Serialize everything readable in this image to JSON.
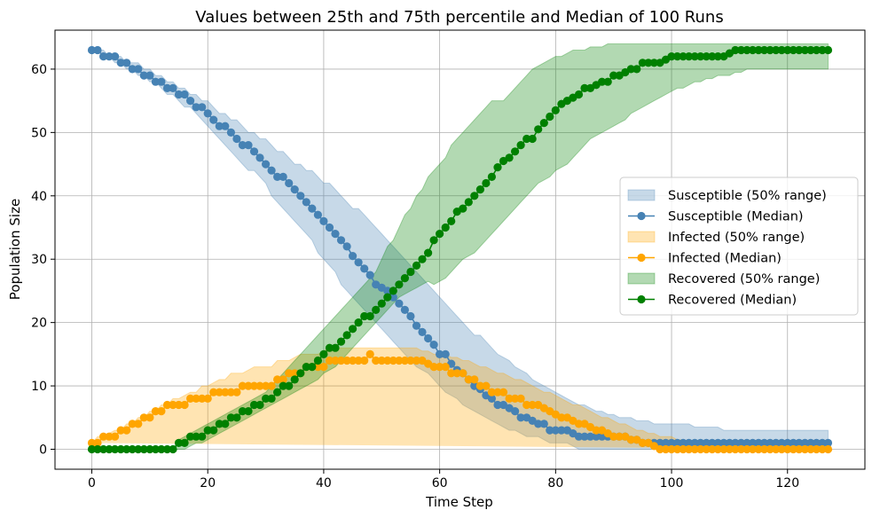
{
  "chart_data": {
    "type": "line",
    "title": "Values between 25th and 75th percentile and Median of 100 Runs",
    "xlabel": "Time Step",
    "ylabel": "Population Size",
    "xlim": [
      -6.35,
      133.35
    ],
    "ylim": [
      -3.15,
      66.15
    ],
    "x_ticks": [
      0,
      20,
      40,
      60,
      80,
      100,
      120
    ],
    "y_ticks": [
      0,
      10,
      20,
      30,
      40,
      50,
      60
    ],
    "grid": true,
    "legend_position": "center-right",
    "legend": [
      {
        "label": "Susceptible (50% range)",
        "kind": "band",
        "color": "#4682b4"
      },
      {
        "label": "Susceptible (Median)",
        "kind": "line",
        "color": "#4682b4"
      },
      {
        "label": "Infected (50% range)",
        "kind": "band",
        "color": "#ffa500"
      },
      {
        "label": "Infected (Median)",
        "kind": "line",
        "color": "#ffa500"
      },
      {
        "label": "Recovered (50% range)",
        "kind": "band",
        "color": "#008000"
      },
      {
        "label": "Recovered (Median)",
        "kind": "line",
        "color": "#008000"
      }
    ],
    "x": [
      0,
      1,
      2,
      3,
      4,
      5,
      6,
      7,
      8,
      9,
      10,
      11,
      12,
      13,
      14,
      15,
      16,
      17,
      18,
      19,
      20,
      21,
      22,
      23,
      24,
      25,
      26,
      27,
      28,
      29,
      30,
      31,
      32,
      33,
      34,
      35,
      36,
      37,
      38,
      39,
      40,
      41,
      42,
      43,
      44,
      45,
      46,
      47,
      48,
      49,
      50,
      51,
      52,
      53,
      54,
      55,
      56,
      57,
      58,
      59,
      60,
      61,
      62,
      63,
      64,
      65,
      66,
      67,
      68,
      69,
      70,
      71,
      72,
      73,
      74,
      75,
      76,
      77,
      78,
      79,
      80,
      81,
      82,
      83,
      84,
      85,
      86,
      87,
      88,
      89,
      90,
      91,
      92,
      93,
      94,
      95,
      96,
      97,
      98,
      99,
      100,
      101,
      102,
      103,
      104,
      105,
      106,
      107,
      108,
      109,
      110,
      111,
      112,
      113,
      114,
      115,
      116,
      117,
      118,
      119,
      120,
      121,
      122,
      123,
      124,
      125,
      126,
      127
    ],
    "series": [
      {
        "name": "Susceptible",
        "color": "#4682b4",
        "median": [
          63,
          63,
          62,
          62,
          62,
          61,
          61,
          60,
          60,
          59,
          59,
          58,
          58,
          57,
          57,
          56,
          56,
          55,
          54,
          54,
          53,
          52,
          51,
          51,
          50,
          49,
          48,
          48,
          47,
          46,
          45,
          44,
          43,
          43,
          42,
          41,
          40,
          39,
          38,
          37,
          36,
          35,
          34,
          33,
          32,
          30.5,
          29.5,
          28.5,
          27.5,
          26,
          25.5,
          25,
          24,
          23,
          22,
          21,
          19.5,
          18.5,
          17.5,
          16.5,
          15,
          15,
          13.5,
          12.5,
          12,
          11,
          10,
          9.5,
          8.5,
          8,
          7,
          7,
          6.5,
          6,
          5,
          5,
          4.5,
          4,
          4,
          3,
          3,
          3,
          3,
          2.5,
          2,
          2,
          2,
          2,
          2,
          2,
          2,
          2,
          2,
          1.5,
          1.5,
          1,
          1,
          1,
          1,
          1,
          1,
          1,
          1,
          1,
          1,
          1,
          1,
          1,
          1,
          1,
          1,
          1,
          1,
          1,
          1,
          1,
          1,
          1,
          1,
          1,
          1,
          1,
          1,
          1,
          1,
          1,
          1,
          1
        ],
        "q25": [
          63,
          63,
          62,
          62,
          61,
          61,
          60,
          60,
          59,
          59,
          58,
          58,
          57,
          56,
          56,
          55,
          54,
          54,
          53,
          52,
          51,
          50,
          49,
          48,
          47,
          46,
          45,
          44,
          44,
          43,
          42,
          40,
          39,
          38,
          37,
          36,
          35,
          34,
          33,
          31,
          30,
          29,
          28,
          26,
          25,
          24,
          23,
          22,
          21,
          20,
          19,
          18,
          17,
          16,
          15,
          14,
          13,
          12.5,
          12,
          11,
          10,
          9,
          8.5,
          8,
          7,
          6.5,
          6,
          5.5,
          5,
          4.5,
          4,
          3.5,
          3,
          3,
          2.5,
          2,
          2,
          2,
          1.5,
          1,
          1,
          1,
          1,
          0.5,
          0,
          0,
          0,
          0,
          0,
          0,
          0,
          0,
          0,
          0,
          0,
          0,
          0,
          0,
          0,
          0,
          0,
          0,
          0,
          0,
          0,
          0,
          0,
          0,
          0,
          0,
          0,
          0,
          0,
          0,
          0,
          0,
          0,
          0,
          0,
          0,
          0,
          0,
          0,
          0,
          0,
          0,
          0,
          0
        ],
        "q75": [
          63,
          63,
          63,
          62,
          62,
          62,
          61,
          61,
          61,
          60,
          60,
          59,
          59,
          58,
          58,
          57,
          57,
          56,
          56,
          55,
          55,
          54,
          53,
          53,
          52,
          52,
          51,
          50,
          50,
          49,
          49,
          48,
          47,
          47,
          46,
          45,
          45,
          44,
          44,
          43,
          42,
          42,
          41,
          40,
          39,
          38,
          38,
          37,
          36,
          35,
          34,
          33,
          32,
          31,
          30,
          29,
          28,
          27,
          26,
          25,
          24,
          23,
          22,
          21,
          20,
          19,
          18,
          18,
          17,
          16,
          15,
          14.5,
          14,
          13,
          12.5,
          12,
          11,
          10.5,
          10,
          9.5,
          9,
          8.5,
          8,
          7.5,
          7,
          7,
          6.5,
          6,
          6,
          5.5,
          5.5,
          5,
          5,
          5,
          4.5,
          4.5,
          4.5,
          4,
          4,
          4,
          4,
          4,
          4,
          4,
          3.5,
          3.5,
          3.5,
          3.5,
          3.5,
          3,
          3,
          3,
          3,
          3,
          3,
          3,
          3,
          3,
          3,
          3,
          3,
          3,
          3,
          3,
          3,
          3,
          3,
          3
        ]
      },
      {
        "name": "Infected",
        "color": "#ffa500",
        "median": [
          1,
          1,
          2,
          2,
          2,
          3,
          3,
          4,
          4,
          5,
          5,
          6,
          6,
          7,
          7,
          7,
          7,
          8,
          8,
          8,
          8,
          9,
          9,
          9,
          9,
          9,
          10,
          10,
          10,
          10,
          10,
          10,
          11,
          11,
          12,
          12,
          12,
          13,
          13,
          13,
          13,
          14,
          14,
          14,
          14,
          14,
          14,
          14,
          15,
          14,
          14,
          14,
          14,
          14,
          14,
          14,
          14,
          14,
          13.5,
          13,
          13,
          13,
          12,
          12,
          12,
          11,
          11,
          10,
          10,
          9,
          9,
          9,
          8,
          8,
          8,
          7,
          7,
          7,
          6.5,
          6,
          5.5,
          5,
          5,
          4.5,
          4,
          4,
          3.5,
          3,
          3,
          2.5,
          2,
          2,
          2,
          1.5,
          1.5,
          1,
          1,
          0.5,
          0,
          0,
          0,
          0,
          0,
          0,
          0,
          0,
          0,
          0,
          0,
          0,
          0,
          0,
          0,
          0,
          0,
          0,
          0,
          0,
          0,
          0,
          0,
          0,
          0,
          0,
          0,
          0,
          0,
          0
        ],
        "q25": [
          1,
          1,
          1,
          1.5,
          2,
          2,
          2.5,
          3,
          3,
          3.5,
          4,
          4.5,
          5,
          5,
          5.5,
          6,
          6,
          6,
          6.5,
          7,
          7,
          7,
          7.5,
          7.5,
          7.5,
          8,
          8,
          8,
          8.5,
          8.5,
          9,
          9,
          9,
          9.5,
          10,
          10,
          10,
          10.5,
          11,
          11,
          11,
          11,
          11,
          11,
          11,
          11,
          11,
          11,
          11,
          11,
          11,
          11,
          11,
          11,
          11,
          10.5,
          10.5,
          10,
          10,
          10,
          9.5,
          9.5,
          9,
          9,
          8.5,
          8,
          8,
          7.5,
          7,
          7,
          6.5,
          6,
          6,
          5.5,
          5,
          5,
          4.5,
          4,
          4,
          3.5,
          3,
          2.5,
          2,
          2,
          1.5,
          1,
          1,
          1,
          0.5,
          0.5,
          0,
          0,
          0,
          0,
          0,
          0,
          0,
          0,
          0,
          0,
          0,
          0,
          0,
          0,
          0,
          0,
          0,
          0,
          0,
          0,
          0,
          0,
          0,
          0,
          0,
          0,
          0,
          0,
          0,
          0,
          0,
          0,
          0,
          0,
          0,
          0,
          0,
          0
        ],
        "q75": [
          1,
          2,
          2,
          2.5,
          3,
          3,
          4,
          4,
          5,
          5,
          6,
          6,
          7,
          7,
          8,
          8,
          8.5,
          9,
          9,
          10,
          10,
          10.5,
          11,
          11,
          12,
          12,
          12,
          12.5,
          13,
          13,
          13,
          13,
          14,
          14,
          14,
          14.5,
          15,
          15,
          15,
          15,
          15.5,
          16,
          16,
          16,
          16,
          16,
          16,
          16,
          16,
          16,
          16,
          16,
          16,
          16,
          16,
          16,
          16,
          15.5,
          15.5,
          15,
          15,
          15,
          14.5,
          14.5,
          14,
          14,
          13.5,
          13,
          13,
          12.5,
          12,
          12,
          11.5,
          11,
          11,
          10.5,
          10,
          9.5,
          9,
          9,
          8.5,
          8,
          7.5,
          7,
          7,
          6.5,
          6,
          5.5,
          5,
          5,
          4.5,
          4,
          4,
          3.5,
          3,
          3,
          2.5,
          2.5,
          2,
          2,
          2,
          1.5,
          1.5,
          1,
          1,
          1,
          0.5,
          0.5,
          0,
          0,
          0,
          0,
          0,
          0,
          0,
          0,
          0,
          0,
          0,
          0,
          0,
          0,
          0,
          0,
          0,
          0
        ]
      },
      {
        "name": "Recovered",
        "color": "#008000",
        "median": [
          0,
          0,
          0,
          0,
          0,
          0,
          0,
          0,
          0,
          0,
          0,
          0,
          0,
          0,
          0,
          1,
          1,
          2,
          2,
          2,
          3,
          3,
          4,
          4,
          5,
          5,
          6,
          6,
          7,
          7,
          8,
          8,
          9,
          10,
          10,
          11,
          12,
          13,
          13,
          14,
          15,
          16,
          16,
          17,
          18,
          19,
          20,
          21,
          21,
          22,
          23,
          24,
          25,
          26,
          27,
          28,
          29,
          30,
          31,
          33,
          34,
          35,
          36,
          37.5,
          38,
          39,
          40,
          41,
          42,
          43,
          44.5,
          45.5,
          46,
          47,
          48,
          49,
          49,
          50.5,
          51.5,
          52.5,
          53.5,
          54.5,
          55,
          55.5,
          56,
          57,
          57,
          57.5,
          58,
          58,
          59,
          59,
          59.5,
          60,
          60,
          61,
          61,
          61,
          61,
          61.5,
          62,
          62,
          62,
          62,
          62,
          62,
          62,
          62,
          62,
          62,
          62.5,
          63,
          63,
          63,
          63,
          63,
          63,
          63,
          63,
          63,
          63,
          63,
          63,
          63,
          63,
          63,
          63,
          63
        ],
        "q25": [
          0,
          0,
          0,
          0,
          0,
          0,
          0,
          0,
          0,
          0,
          0,
          0,
          0,
          0,
          0,
          0,
          0,
          0.5,
          1,
          1,
          1.5,
          2,
          2.5,
          3,
          3.5,
          4,
          4.5,
          5,
          5.5,
          6,
          6.5,
          7,
          7.5,
          8,
          8.5,
          9,
          9.5,
          10,
          10.5,
          11,
          12,
          12.5,
          13,
          14,
          15,
          16,
          17,
          18,
          19,
          20,
          21,
          22,
          23,
          24,
          24.5,
          25,
          25.5,
          26,
          26.5,
          26,
          26.5,
          27,
          28,
          29,
          30,
          30.5,
          31,
          32,
          33,
          34,
          35,
          36,
          37,
          38,
          39,
          40,
          41,
          42,
          42.5,
          43,
          44,
          44.5,
          45,
          46,
          47,
          48,
          49,
          49.5,
          50,
          50.5,
          51,
          51.5,
          52,
          53,
          53.5,
          54,
          54.5,
          55,
          55.5,
          56,
          56.5,
          57,
          57,
          57.5,
          58,
          58,
          58.5,
          58.5,
          59,
          59,
          59,
          59.5,
          59.5,
          60,
          60,
          60,
          60,
          60,
          60,
          60,
          60,
          60,
          60,
          60,
          60,
          60,
          60,
          60,
          60,
          60
        ],
        "q75": [
          0,
          0,
          0,
          0,
          0,
          0,
          0,
          0,
          0,
          0,
          0,
          0,
          0,
          0,
          0,
          1.5,
          2,
          2.5,
          3,
          3.5,
          4,
          4.5,
          5,
          5.5,
          6,
          6.5,
          7,
          7.5,
          8,
          8.5,
          9,
          10,
          11,
          12,
          13,
          14,
          15,
          16,
          17,
          18,
          19,
          20,
          21,
          22,
          23,
          24,
          25,
          26,
          27,
          28,
          30,
          32,
          33,
          35,
          37,
          38,
          40,
          41,
          43,
          44,
          45,
          46,
          48,
          49,
          50,
          51,
          52,
          53,
          54,
          55,
          55,
          55,
          56,
          57,
          58,
          59,
          60,
          60.5,
          61,
          61.5,
          62,
          62,
          62.5,
          63,
          63,
          63,
          63.5,
          63.5,
          63.5,
          64,
          64,
          64,
          64,
          64,
          64,
          64,
          64,
          64,
          64,
          64,
          64,
          64,
          64,
          64,
          64,
          64,
          64,
          64,
          64,
          64,
          64,
          64,
          64,
          64,
          64,
          64,
          64,
          64,
          64,
          64,
          64,
          64,
          64,
          64,
          64,
          64,
          64,
          64,
          64,
          64,
          64,
          64,
          64,
          64
        ]
      }
    ]
  }
}
